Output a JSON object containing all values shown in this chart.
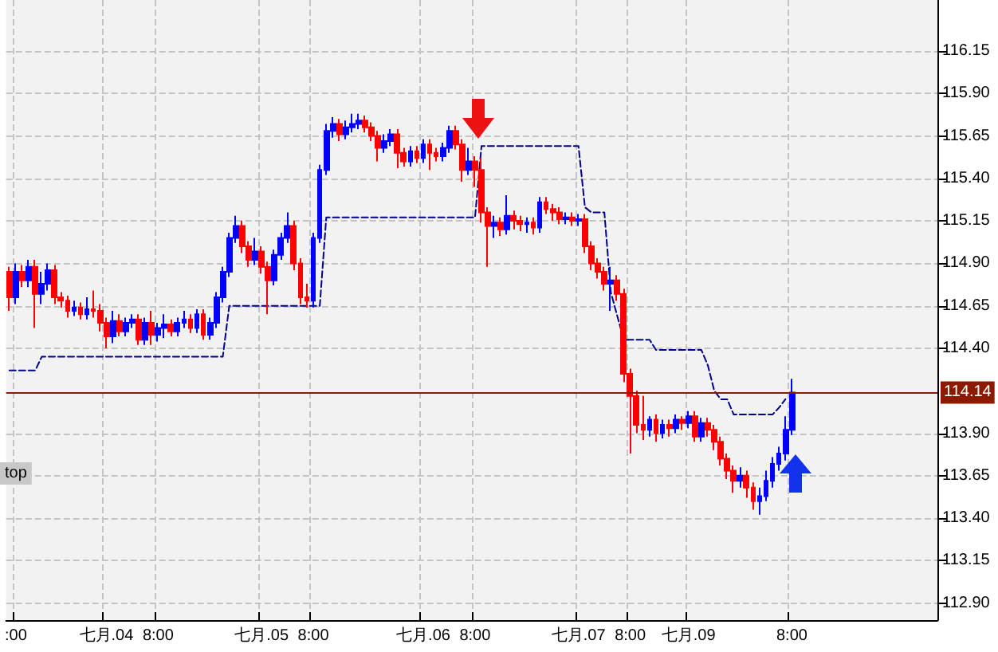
{
  "chart_data": {
    "type": "candlestick",
    "categories": [
      null,
      ":00",
      null,
      null,
      null,
      null,
      null,
      null,
      null,
      null,
      null,
      null,
      null,
      null,
      null,
      "七月.04",
      null,
      null,
      null,
      null,
      null,
      null,
      null,
      "8:00",
      null,
      null,
      null,
      null,
      null,
      null,
      null,
      null,
      null,
      null,
      null,
      null,
      null,
      null,
      null,
      "七月.05",
      null,
      null,
      null,
      null,
      null,
      null,
      null,
      "8:00",
      null,
      null,
      null,
      null,
      null,
      null,
      null,
      null,
      null,
      null,
      null,
      null,
      null,
      null,
      null,
      null,
      "七月.06",
      null,
      null,
      null,
      null,
      null,
      null,
      null,
      "8:00",
      null,
      null,
      null,
      null,
      null,
      null,
      null,
      null,
      null,
      null,
      null,
      null,
      null,
      null,
      null,
      "七月.07",
      null,
      null,
      null,
      null,
      null,
      null,
      null,
      "8:00",
      null,
      null,
      null,
      null,
      null,
      null,
      null,
      null,
      "七月.09",
      null,
      null,
      null,
      null,
      null,
      null,
      null,
      null,
      null,
      null,
      null,
      null,
      null,
      null,
      null,
      "8:00",
      null,
      null,
      null,
      null,
      null,
      null,
      null,
      null,
      null,
      null,
      null,
      null,
      null,
      null,
      null,
      null,
      null,
      null,
      null,
      null,
      null,
      null
    ],
    "colors": [
      "#ff0000",
      "#0000ff",
      "#ff0000",
      "#0000ff",
      "#ff0000",
      "#0000ff",
      "#0000ff",
      "#ff0000",
      "#ff0000",
      "#ff0000",
      "#0000ff",
      "#ff0000",
      "#0000ff",
      "#ff0000",
      "#ff0000",
      "#ff0000",
      "#0000ff",
      "#ff0000",
      "#0000ff",
      "#0000ff",
      "#ff0000",
      "#0000ff",
      "#ff0000",
      "#0000ff",
      "#0000ff",
      "#ff0000",
      "#0000ff",
      "#0000ff",
      "#ff0000",
      "#0000ff",
      "#ff0000",
      "#0000ff",
      "#0000ff",
      "#0000ff",
      "#0000ff",
      "#0000ff",
      "#ff0000",
      "#ff0000",
      "#0000ff",
      "#ff0000",
      "#ff0000",
      "#0000ff",
      "#0000ff",
      "#0000ff",
      "#ff0000",
      "#ff0000",
      "#ff0000",
      "#0000ff",
      "#0000ff",
      "#0000ff",
      "#0000ff",
      "#ff0000",
      "#0000ff",
      "#0000ff",
      "#0000ff",
      "#ff0000",
      "#ff0000",
      "#ff0000",
      "#0000ff",
      "#0000ff",
      "#ff0000",
      "#ff0000",
      "#0000ff",
      "#ff0000",
      "#0000ff",
      "#ff0000",
      "#ff0000",
      "#0000ff",
      "#0000ff",
      "#ff0000",
      "#ff0000",
      "#0000ff",
      "#ff0000",
      "#ff0000",
      "#ff0000",
      "#0000ff",
      "#ff0000",
      "#0000ff",
      "#ff0000",
      "#ff0000",
      "#0000ff",
      "#ff0000",
      "#0000ff",
      "#ff0000",
      "#ff0000",
      "#ff0000",
      "#0000ff",
      "#ff0000",
      "#0000ff",
      "#ff0000",
      "#ff0000",
      "#ff0000",
      "#ff0000",
      "#0000ff",
      "#ff0000",
      "#ff0000",
      "#ff0000",
      "#ff0000",
      "#ff0000",
      "#0000ff",
      "#ff0000",
      "#0000ff",
      "#ff0000",
      "#0000ff",
      "#ff0000",
      "#0000ff",
      "#ff0000",
      "#0000ff",
      "#ff0000",
      "#ff0000",
      "#ff0000",
      "#ff0000",
      "#ff0000",
      "#0000ff",
      "#ff0000",
      "#ff0000",
      "#0000ff",
      "#0000ff",
      "#0000ff",
      "#0000ff",
      "#0000ff",
      "#0000ff",
      null,
      null,
      null,
      null,
      null,
      null,
      null,
      null,
      null,
      null,
      null,
      null,
      null,
      null,
      null,
      null,
      null,
      null,
      null,
      null,
      null,
      null
    ],
    "ohlc": [
      [
        114.85,
        114.88,
        114.62,
        114.7
      ],
      [
        114.7,
        114.9,
        114.66,
        114.85
      ],
      [
        114.85,
        114.89,
        114.76,
        114.8
      ],
      [
        114.8,
        114.92,
        114.76,
        114.88
      ],
      [
        114.88,
        114.92,
        114.52,
        114.72
      ],
      [
        114.72,
        114.85,
        114.66,
        114.78
      ],
      [
        114.78,
        114.9,
        114.74,
        114.86
      ],
      [
        114.86,
        114.89,
        114.66,
        114.7
      ],
      [
        114.7,
        114.73,
        114.64,
        114.68
      ],
      [
        114.68,
        114.71,
        114.58,
        114.62
      ],
      [
        114.62,
        114.68,
        114.59,
        114.64
      ],
      [
        114.64,
        114.67,
        114.57,
        114.6
      ],
      [
        114.6,
        114.7,
        114.57,
        114.63
      ],
      [
        114.63,
        114.74,
        114.58,
        114.62
      ],
      [
        114.62,
        114.66,
        114.5,
        114.55
      ],
      [
        114.55,
        114.58,
        114.4,
        114.47
      ],
      [
        114.47,
        114.62,
        114.43,
        114.56
      ],
      [
        114.56,
        114.6,
        114.47,
        114.5
      ],
      [
        114.5,
        114.58,
        114.47,
        114.55
      ],
      [
        114.55,
        114.6,
        114.52,
        114.57
      ],
      [
        114.57,
        114.6,
        114.42,
        114.45
      ],
      [
        114.45,
        114.58,
        114.42,
        114.55
      ],
      [
        114.55,
        114.62,
        114.42,
        114.48
      ],
      [
        114.48,
        114.55,
        114.44,
        114.52
      ],
      [
        114.52,
        114.6,
        114.46,
        114.54
      ],
      [
        114.54,
        114.57,
        114.47,
        114.5
      ],
      [
        114.5,
        114.58,
        114.47,
        114.55
      ],
      [
        114.55,
        114.62,
        114.52,
        114.57
      ],
      [
        114.57,
        114.6,
        114.49,
        114.52
      ],
      [
        114.52,
        114.63,
        114.49,
        114.6
      ],
      [
        114.6,
        114.63,
        114.45,
        114.48
      ],
      [
        114.48,
        114.58,
        114.45,
        114.55
      ],
      [
        114.55,
        114.73,
        114.52,
        114.7
      ],
      [
        114.7,
        114.88,
        114.67,
        114.85
      ],
      [
        114.85,
        115.08,
        114.82,
        115.05
      ],
      [
        115.05,
        115.18,
        115.02,
        115.12
      ],
      [
        115.12,
        115.15,
        114.96,
        115.0
      ],
      [
        115.0,
        115.03,
        114.88,
        114.92
      ],
      [
        114.92,
        115.05,
        114.89,
        114.97
      ],
      [
        114.97,
        115.0,
        114.84,
        114.88
      ],
      [
        114.88,
        114.91,
        114.6,
        114.8
      ],
      [
        114.8,
        114.98,
        114.77,
        114.95
      ],
      [
        114.95,
        115.08,
        114.92,
        115.05
      ],
      [
        115.05,
        115.2,
        115.02,
        115.12
      ],
      [
        115.12,
        115.15,
        114.86,
        114.9
      ],
      [
        114.9,
        114.93,
        114.66,
        114.7
      ],
      [
        114.7,
        114.78,
        114.64,
        114.68
      ],
      [
        114.68,
        115.08,
        114.64,
        115.05
      ],
      [
        115.05,
        115.48,
        115.02,
        115.45
      ],
      [
        115.45,
        115.72,
        115.42,
        115.68
      ],
      [
        115.68,
        115.76,
        115.64,
        115.72
      ],
      [
        115.72,
        115.75,
        115.62,
        115.66
      ],
      [
        115.66,
        115.74,
        115.63,
        115.7
      ],
      [
        115.7,
        115.78,
        115.67,
        115.72
      ],
      [
        115.72,
        115.78,
        115.69,
        115.74
      ],
      [
        115.74,
        115.77,
        115.67,
        115.7
      ],
      [
        115.7,
        115.73,
        115.62,
        115.65
      ],
      [
        115.65,
        115.68,
        115.5,
        115.58
      ],
      [
        115.58,
        115.66,
        115.55,
        115.62
      ],
      [
        115.62,
        115.69,
        115.59,
        115.66
      ],
      [
        115.66,
        115.69,
        115.46,
        115.55
      ],
      [
        115.55,
        115.58,
        115.47,
        115.5
      ],
      [
        115.5,
        115.59,
        115.47,
        115.56
      ],
      [
        115.56,
        115.59,
        115.49,
        115.52
      ],
      [
        115.52,
        115.63,
        115.49,
        115.6
      ],
      [
        115.6,
        115.63,
        115.45,
        115.55
      ],
      [
        115.55,
        115.58,
        115.5,
        115.53
      ],
      [
        115.53,
        115.61,
        115.5,
        115.58
      ],
      [
        115.58,
        115.71,
        115.55,
        115.68
      ],
      [
        115.68,
        115.71,
        115.57,
        115.6
      ],
      [
        115.6,
        115.63,
        115.38,
        115.45
      ],
      [
        115.45,
        115.58,
        115.42,
        115.5
      ],
      [
        115.5,
        115.53,
        115.35,
        115.45
      ],
      [
        115.45,
        115.52,
        115.14,
        115.2
      ],
      [
        115.2,
        115.23,
        114.88,
        115.12
      ],
      [
        115.12,
        115.18,
        115.05,
        115.14
      ],
      [
        115.14,
        115.17,
        115.06,
        115.1
      ],
      [
        115.1,
        115.3,
        115.07,
        115.18
      ],
      [
        115.18,
        115.21,
        115.1,
        115.15
      ],
      [
        115.15,
        115.18,
        115.09,
        115.13
      ],
      [
        115.13,
        115.17,
        115.08,
        115.14
      ],
      [
        115.14,
        115.17,
        115.07,
        115.11
      ],
      [
        115.11,
        115.29,
        115.08,
        115.26
      ],
      [
        115.26,
        115.29,
        115.19,
        115.22
      ],
      [
        115.22,
        115.25,
        115.15,
        115.2
      ],
      [
        115.2,
        115.23,
        115.13,
        115.16
      ],
      [
        115.16,
        115.2,
        115.13,
        115.17
      ],
      [
        115.17,
        115.2,
        115.12,
        115.15
      ],
      [
        115.15,
        115.19,
        115.12,
        115.16
      ],
      [
        115.16,
        115.19,
        114.96,
        115.0
      ],
      [
        115.0,
        115.03,
        114.86,
        114.9
      ],
      [
        114.9,
        114.93,
        114.81,
        114.85
      ],
      [
        114.85,
        114.88,
        114.74,
        114.78
      ],
      [
        114.78,
        114.88,
        114.62,
        114.8
      ],
      [
        114.8,
        114.83,
        114.68,
        114.72
      ],
      [
        114.72,
        114.75,
        114.2,
        114.25
      ],
      [
        114.25,
        114.28,
        113.78,
        114.12
      ],
      [
        114.12,
        114.15,
        113.9,
        113.95
      ],
      [
        113.95,
        114.12,
        113.86,
        113.92
      ],
      [
        113.92,
        114.0,
        113.88,
        113.98
      ],
      [
        113.98,
        114.01,
        113.85,
        113.9
      ],
      [
        113.9,
        113.98,
        113.87,
        113.95
      ],
      [
        113.95,
        113.98,
        113.88,
        113.93
      ],
      [
        113.93,
        114.01,
        113.9,
        113.98
      ],
      [
        113.98,
        114.0,
        113.92,
        113.96
      ],
      [
        113.96,
        114.03,
        113.93,
        114.0
      ],
      [
        114.0,
        114.03,
        113.85,
        113.88
      ],
      [
        113.88,
        113.99,
        113.85,
        113.96
      ],
      [
        113.96,
        113.99,
        113.88,
        113.92
      ],
      [
        113.92,
        113.95,
        113.8,
        113.85
      ],
      [
        113.85,
        113.88,
        113.71,
        113.75
      ],
      [
        113.75,
        113.78,
        113.63,
        113.68
      ],
      [
        113.68,
        113.71,
        113.55,
        113.62
      ],
      [
        113.62,
        113.7,
        113.58,
        113.65
      ],
      [
        113.65,
        113.68,
        113.52,
        113.58
      ],
      [
        113.58,
        113.61,
        113.45,
        113.5
      ],
      [
        113.5,
        113.58,
        113.42,
        113.53
      ],
      [
        113.53,
        113.68,
        113.5,
        113.62
      ],
      [
        113.62,
        113.76,
        113.58,
        113.72
      ],
      [
        113.72,
        113.82,
        113.68,
        113.78
      ],
      [
        113.78,
        114.0,
        113.74,
        113.92
      ],
      [
        113.92,
        114.22,
        113.89,
        114.14
      ],
      null,
      null,
      null,
      null,
      null,
      null,
      null,
      null,
      null,
      null,
      null,
      null,
      null,
      null,
      null,
      null,
      null,
      null,
      null,
      null,
      null,
      null
    ],
    "series": [
      {
        "type": "line",
        "color": "#00008b",
        "line_style": "dashed",
        "marker": "none",
        "values": [
          114.27,
          114.27,
          114.27,
          114.27,
          114.27,
          114.35,
          114.35,
          114.35,
          114.35,
          114.35,
          114.35,
          114.35,
          114.35,
          114.35,
          114.35,
          114.35,
          114.35,
          114.35,
          114.35,
          114.35,
          114.35,
          114.35,
          114.35,
          114.35,
          114.35,
          114.35,
          114.35,
          114.35,
          114.35,
          114.35,
          114.35,
          114.35,
          114.35,
          114.35,
          114.65,
          114.65,
          114.65,
          114.65,
          114.65,
          114.65,
          114.65,
          114.65,
          114.65,
          114.65,
          114.65,
          114.65,
          114.65,
          114.65,
          114.65,
          115.17,
          115.17,
          115.17,
          115.17,
          115.17,
          115.17,
          115.17,
          115.17,
          115.17,
          115.17,
          115.17,
          115.17,
          115.17,
          115.17,
          115.17,
          115.17,
          115.17,
          115.17,
          115.17,
          115.17,
          115.17,
          115.17,
          115.17,
          115.17,
          115.59,
          115.59,
          115.59,
          115.59,
          115.59,
          115.59,
          115.59,
          115.59,
          115.59,
          115.59,
          115.59,
          115.59,
          115.59,
          115.59,
          115.59,
          115.59,
          115.23,
          115.2,
          115.2,
          115.2,
          114.73,
          114.59,
          114.45,
          114.45,
          114.45,
          114.45,
          114.45,
          114.39,
          114.39,
          114.39,
          114.39,
          114.39,
          114.39,
          114.39,
          114.39,
          114.3,
          114.15,
          114.1,
          114.1,
          114.01,
          114.01,
          114.01,
          114.01,
          114.01,
          114.01,
          114.01,
          114.05,
          114.1,
          null,
          null,
          null,
          null,
          null,
          null,
          null,
          null,
          null,
          null,
          null,
          null,
          null,
          null,
          null,
          null,
          null,
          null,
          null,
          null,
          null,
          null,
          null
        ]
      }
    ],
    "ylim": [
      112.8,
      116.45
    ],
    "yticks": [
      {
        "value": 112.9,
        "label": "112.90"
      },
      {
        "value": 113.15,
        "label": "113.15"
      },
      {
        "value": 113.4,
        "label": "113.40"
      },
      {
        "value": 113.65,
        "label": "113.65"
      },
      {
        "value": 113.9,
        "label": "113.90"
      },
      {
        "value": 114.4,
        "label": "114.40"
      },
      {
        "value": 114.65,
        "label": "114.65"
      },
      {
        "value": 114.9,
        "label": "114.90"
      },
      {
        "value": 115.15,
        "label": "115.15"
      },
      {
        "value": 115.4,
        "label": "115.40"
      },
      {
        "value": 115.65,
        "label": "115.65"
      },
      {
        "value": 115.9,
        "label": "115.90"
      },
      {
        "value": 116.15,
        "label": "116.15"
      }
    ],
    "ref_lines": [
      {
        "axis": "y",
        "value": 114.14,
        "label": "114.14",
        "color": "#8b1a00"
      }
    ],
    "annotations": [
      "top"
    ],
    "grid": true
  }
}
